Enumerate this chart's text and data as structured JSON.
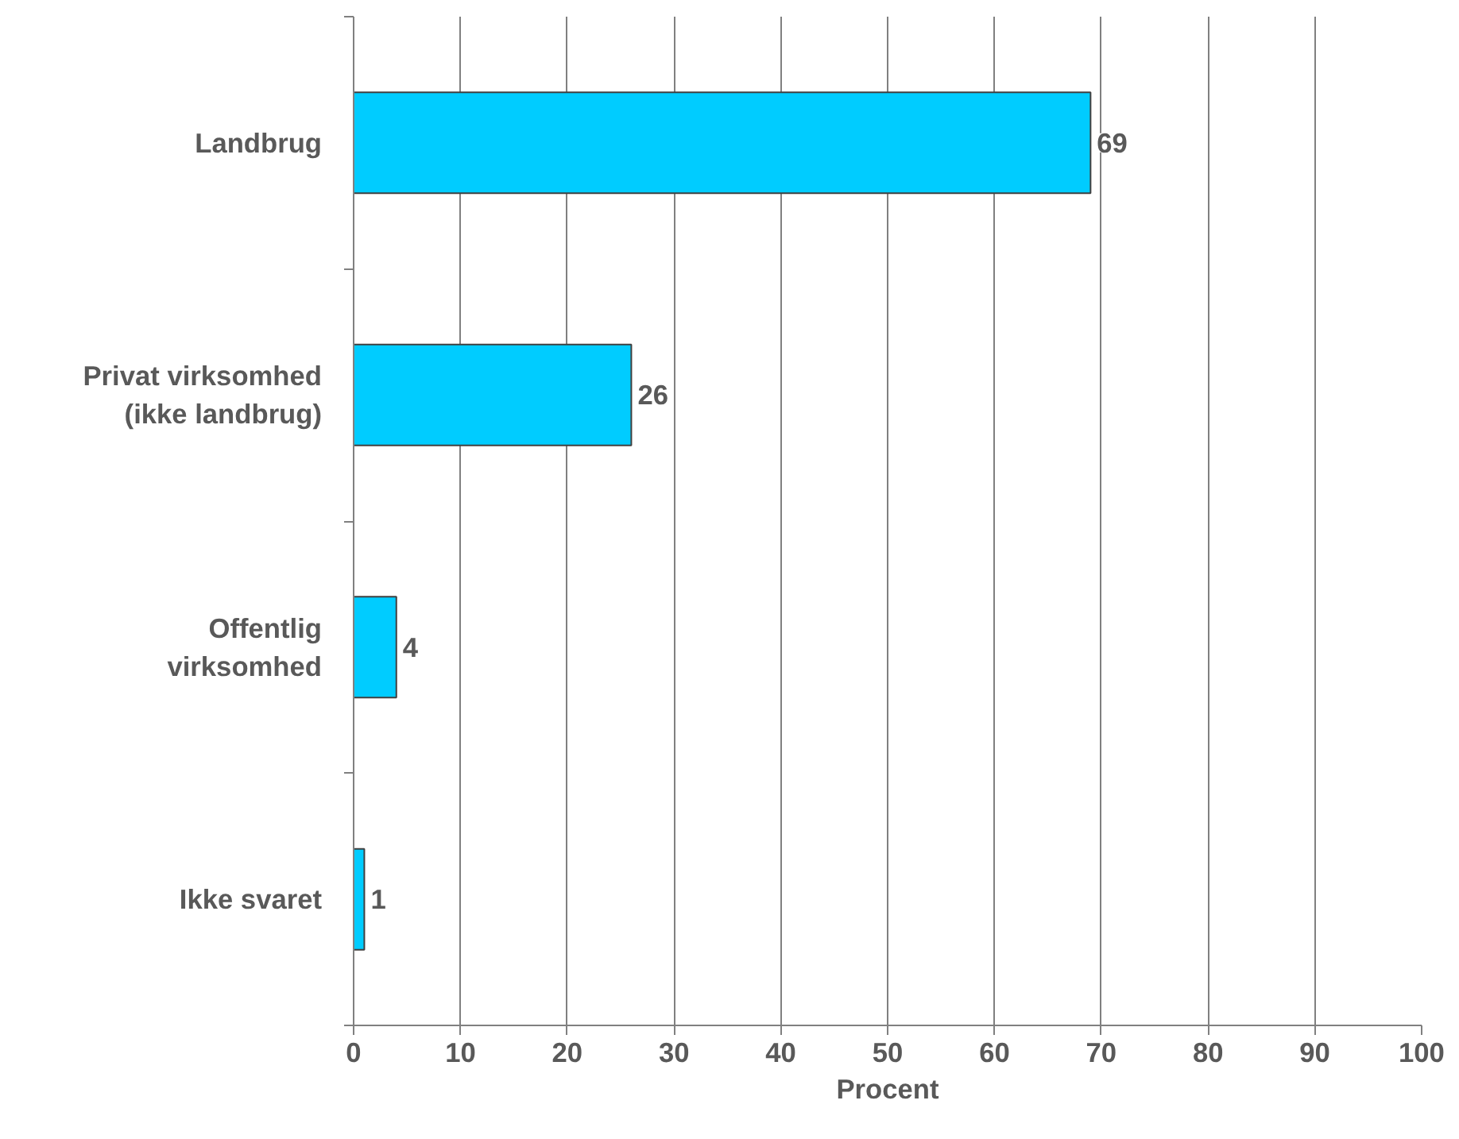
{
  "chart_data": {
    "type": "bar",
    "orientation": "horizontal",
    "xlabel": "Procent",
    "categories": [
      "Landbrug",
      "Privat virksomhed\n(ikke landbrug)",
      "Offentlig\nvirksomhed",
      "Ikke svaret"
    ],
    "values": [
      69,
      26,
      4,
      1
    ],
    "color": "#00ccff",
    "data_labels": true,
    "xlim": [
      0,
      100
    ],
    "xticks": [
      0,
      10,
      20,
      30,
      40,
      50,
      60,
      70,
      80,
      90,
      100
    ],
    "grid": "x"
  }
}
